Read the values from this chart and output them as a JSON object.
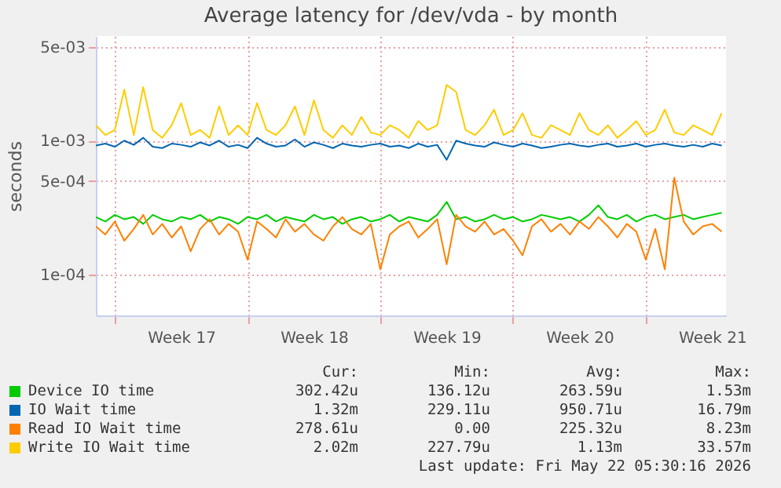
{
  "chart_data": {
    "type": "line",
    "title": "Average latency for /dev/vda - by month",
    "ylabel": "seconds",
    "log": "y",
    "grid": true,
    "legend": "bottom",
    "x": [
      "2026-04-19T00:00",
      "2026-04-19T12:00",
      "2026-04-20T00:00",
      "2026-04-20T12:00",
      "2026-04-21T00:00",
      "2026-04-21T12:00",
      "2026-04-22T00:00",
      "2026-04-22T12:00",
      "2026-04-23T00:00",
      "2026-04-23T12:00",
      "2026-04-24T00:00",
      "2026-04-24T12:00",
      "2026-04-25T00:00",
      "2026-04-25T12:00",
      "2026-04-26T00:00",
      "2026-04-26T12:00",
      "2026-04-27T00:00",
      "2026-04-27T12:00",
      "2026-04-28T00:00",
      "2026-04-28T12:00",
      "2026-04-29T00:00",
      "2026-04-29T12:00",
      "2026-04-30T00:00",
      "2026-04-30T12:00",
      "2026-05-01T00:00",
      "2026-05-01T12:00",
      "2026-05-02T00:00",
      "2026-05-02T12:00",
      "2026-05-03T00:00",
      "2026-05-03T12:00",
      "2026-05-04T00:00",
      "2026-05-04T12:00",
      "2026-05-05T00:00",
      "2026-05-05T12:00",
      "2026-05-06T00:00",
      "2026-05-06T12:00",
      "2026-05-07T00:00",
      "2026-05-07T12:00",
      "2026-05-08T00:00",
      "2026-05-08T12:00",
      "2026-05-09T00:00",
      "2026-05-09T12:00",
      "2026-05-10T00:00",
      "2026-05-10T12:00",
      "2026-05-11T00:00",
      "2026-05-11T12:00",
      "2026-05-12T00:00",
      "2026-05-12T12:00",
      "2026-05-13T00:00",
      "2026-05-13T12:00",
      "2026-05-14T00:00",
      "2026-05-14T12:00",
      "2026-05-15T00:00",
      "2026-05-15T12:00",
      "2026-05-16T00:00",
      "2026-05-16T12:00",
      "2026-05-17T00:00",
      "2026-05-17T12:00",
      "2026-05-18T00:00",
      "2026-05-18T12:00",
      "2026-05-19T00:00",
      "2026-05-19T12:00",
      "2026-05-20T00:00",
      "2026-05-20T12:00",
      "2026-05-21T00:00",
      "2026-05-21T12:00",
      "2026-05-22T00:00"
    ],
    "xlim": [
      "2026-04-19T00:00",
      "2026-05-22T05:30"
    ],
    "xticks": [
      {
        "value": "2026-04-20T00:00",
        "label": null
      },
      {
        "value": "2026-04-23T12:00",
        "label": "Week 17"
      },
      {
        "value": "2026-04-27T00:00",
        "label": null
      },
      {
        "value": "2026-04-30T12:00",
        "label": "Week 18"
      },
      {
        "value": "2026-05-04T00:00",
        "label": null
      },
      {
        "value": "2026-05-07T12:00",
        "label": "Week 19"
      },
      {
        "value": "2026-05-11T00:00",
        "label": null
      },
      {
        "value": "2026-05-14T12:00",
        "label": "Week 20"
      },
      {
        "value": "2026-05-18T00:00",
        "label": null
      },
      {
        "value": "2026-05-21T12:00",
        "label": "Week 21"
      }
    ],
    "ylim": [
      5e-05,
      0.006
    ],
    "yticks": [
      {
        "value": 0.0001,
        "label": "1e-04"
      },
      {
        "value": 0.0005,
        "label": "5e-04"
      },
      {
        "value": 0.001,
        "label": "1e-03"
      },
      {
        "value": 0.005,
        "label": "5e-03"
      }
    ],
    "series": [
      {
        "name": "Device IO time",
        "color": "#00cc00",
        "values": [
          0.00027,
          0.00025,
          0.00028,
          0.00026,
          0.00027,
          0.00024,
          0.00028,
          0.00026,
          0.00025,
          0.00027,
          0.00026,
          0.00028,
          0.00025,
          0.00027,
          0.00026,
          0.00024,
          0.00027,
          0.00026,
          0.00028,
          0.00025,
          0.00027,
          0.00026,
          0.00025,
          0.00028,
          0.00026,
          0.00027,
          0.00024,
          0.00026,
          0.00027,
          0.00025,
          0.00026,
          0.00028,
          0.00025,
          0.00027,
          0.00026,
          0.00025,
          0.00028,
          0.00035,
          0.00026,
          0.00027,
          0.00025,
          0.00026,
          0.00028,
          0.00026,
          0.00027,
          0.00025,
          0.00026,
          0.00028,
          0.00027,
          0.00026,
          0.00027,
          0.00025,
          0.00028,
          0.00033,
          0.00027,
          0.00026,
          0.00028,
          0.00025,
          0.00027,
          0.00028,
          0.00026,
          0.00027,
          0.00028,
          0.00026,
          0.00027,
          0.00028,
          0.00029
        ]
      },
      {
        "name": "IO Wait time",
        "color": "#0066b3",
        "values": [
          0.00092,
          0.00095,
          0.0009,
          0.001,
          0.00093,
          0.00105,
          0.0009,
          0.00088,
          0.00095,
          0.00093,
          0.0009,
          0.00097,
          0.00092,
          0.001,
          0.0009,
          0.00093,
          0.00088,
          0.00105,
          0.00095,
          0.0009,
          0.00092,
          0.00102,
          0.0009,
          0.00097,
          0.00093,
          0.00088,
          0.00095,
          0.00092,
          0.0009,
          0.00093,
          0.00095,
          0.0009,
          0.00092,
          0.00088,
          0.00095,
          0.0009,
          0.00093,
          0.00072,
          0.001,
          0.00095,
          0.00092,
          0.0009,
          0.00097,
          0.00093,
          0.0009,
          0.00095,
          0.00092,
          0.00088,
          0.0009,
          0.00093,
          0.00095,
          0.00092,
          0.0009,
          0.00093,
          0.00095,
          0.0009,
          0.00092,
          0.00095,
          0.0009,
          0.00093,
          0.00095,
          0.00092,
          0.0009,
          0.00093,
          0.0009,
          0.00095,
          0.00092
        ]
      },
      {
        "name": "Read IO Wait time",
        "color": "#ff8000",
        "values": [
          0.00023,
          0.0002,
          0.00025,
          0.00018,
          0.00022,
          0.00028,
          0.0002,
          0.00024,
          0.00019,
          0.00023,
          0.00015,
          0.00022,
          0.00026,
          0.0002,
          0.00024,
          0.00021,
          0.00013,
          0.00025,
          0.00022,
          0.00019,
          0.00026,
          0.00021,
          0.00024,
          0.0002,
          0.00018,
          0.00023,
          0.00027,
          0.00022,
          0.0002,
          0.00024,
          0.00011,
          0.0002,
          0.00023,
          0.00025,
          0.00019,
          0.00022,
          0.00026,
          0.00012,
          0.00028,
          0.00023,
          0.00021,
          0.00025,
          0.0002,
          0.00022,
          0.00018,
          0.00014,
          0.00023,
          0.00026,
          0.00021,
          0.00024,
          0.0002,
          0.00025,
          0.00022,
          0.00027,
          0.00023,
          0.00019,
          0.00024,
          0.00021,
          0.00013,
          0.00022,
          0.00011,
          0.00053,
          0.00025,
          0.0002,
          0.00023,
          0.00024,
          0.00021
        ]
      },
      {
        "name": "Write IO Wait time",
        "color": "#ffcc00",
        "values": [
          0.0013,
          0.0011,
          0.0012,
          0.0024,
          0.0011,
          0.0025,
          0.0012,
          0.00105,
          0.0013,
          0.0019,
          0.0011,
          0.0012,
          0.00105,
          0.0018,
          0.0011,
          0.0013,
          0.0011,
          0.0019,
          0.0012,
          0.0011,
          0.0013,
          0.0018,
          0.0011,
          0.002,
          0.0012,
          0.00105,
          0.0013,
          0.0011,
          0.0015,
          0.00115,
          0.0011,
          0.0013,
          0.0012,
          0.00105,
          0.0014,
          0.0012,
          0.0013,
          0.0026,
          0.0023,
          0.0012,
          0.0011,
          0.0013,
          0.0017,
          0.0011,
          0.0012,
          0.0016,
          0.0011,
          0.00105,
          0.0013,
          0.0012,
          0.0011,
          0.0016,
          0.0012,
          0.0011,
          0.0013,
          0.00105,
          0.0012,
          0.0014,
          0.0011,
          0.0012,
          0.0017,
          0.00115,
          0.0011,
          0.0013,
          0.0012,
          0.0011,
          0.0016
        ]
      }
    ],
    "annotations": [
      "Cur:",
      "Min:",
      "Avg:",
      "Max:",
      "302.42u",
      "136.12u",
      "263.59u",
      "1.53m",
      "1.32m",
      "229.11u",
      "950.71u",
      "16.79m",
      "278.61u",
      "0.00",
      "225.32u",
      "8.23m",
      "2.02m",
      "227.79u",
      "1.13m",
      "33.57m",
      "Last update: Fri May 22 05:30:16 2026"
    ]
  }
}
